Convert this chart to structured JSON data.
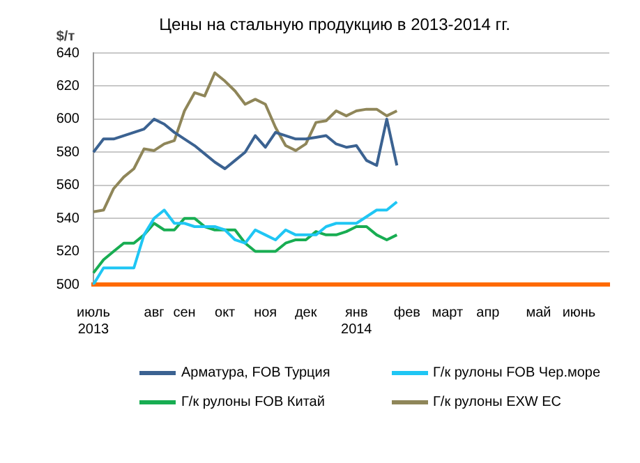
{
  "chart_data": {
    "type": "line",
    "title": "Цены на стальную продукцию в 2013-2014 гг.",
    "ylabel": "$/т",
    "categories": [
      "июль\n2013",
      null,
      null,
      null,
      null,
      null,
      "авг",
      null,
      null,
      "сен",
      null,
      null,
      null,
      "окт",
      null,
      null,
      null,
      "ноя",
      null,
      null,
      null,
      "дек",
      null,
      null,
      null,
      null,
      "янв\n2014",
      null,
      null,
      null,
      null,
      "фев",
      null,
      null,
      null,
      "март",
      null,
      null,
      null,
      "апр",
      null,
      null,
      null,
      null,
      "май",
      null,
      null,
      null,
      "июнь",
      null,
      null,
      null
    ],
    "series": [
      {
        "name": "Арматура, FOB Турция",
        "color": "#3b6291",
        "values": [
          580,
          588,
          588,
          590,
          592,
          594,
          600,
          597,
          592,
          588,
          584,
          579,
          574,
          570,
          575,
          580,
          590,
          583,
          592,
          590,
          588,
          588,
          589,
          590,
          585,
          583,
          584,
          575,
          572,
          600,
          572,
          null,
          null,
          null,
          null,
          null,
          null,
          null,
          null,
          null,
          null,
          null,
          null,
          null,
          null,
          null,
          null,
          null,
          null,
          null,
          null,
          null
        ]
      },
      {
        "name": "Г/к рулоны FOB Чер.море",
        "color": "#1fc6f4",
        "values": [
          500,
          510,
          510,
          510,
          510,
          530,
          540,
          545,
          537,
          537,
          535,
          535,
          535,
          533,
          527,
          525,
          533,
          530,
          527,
          533,
          530,
          530,
          530,
          535,
          537,
          537,
          537,
          541,
          545,
          545,
          550,
          null,
          null,
          null,
          null,
          null,
          null,
          null,
          null,
          null,
          null,
          null,
          null,
          null,
          null,
          null,
          null,
          null,
          null,
          null,
          null,
          null
        ]
      },
      {
        "name": "Г/к рулоны FOB Китай",
        "color": "#18ad52",
        "values": [
          507,
          515,
          520,
          525,
          525,
          530,
          537,
          533,
          533,
          540,
          540,
          535,
          533,
          533,
          533,
          525,
          520,
          520,
          520,
          525,
          527,
          527,
          532,
          530,
          530,
          532,
          535,
          535,
          530,
          527,
          530,
          null,
          null,
          null,
          null,
          null,
          null,
          null,
          null,
          null,
          null,
          null,
          null,
          null,
          null,
          null,
          null,
          null,
          null,
          null,
          null,
          null
        ]
      },
      {
        "name": "Г/к рулоны EXW ЕС",
        "color": "#8f8659",
        "values": [
          544,
          545,
          558,
          565,
          570,
          582,
          581,
          585,
          587,
          605,
          616,
          614,
          628,
          623,
          617,
          609,
          612,
          609,
          595,
          584,
          581,
          585,
          598,
          599,
          605,
          602,
          605,
          606,
          606,
          602,
          605,
          null,
          null,
          null,
          null,
          null,
          null,
          null,
          null,
          null,
          null,
          null,
          null,
          null,
          null,
          null,
          null,
          null,
          null,
          null,
          null,
          null
        ]
      }
    ],
    "ylim": [
      500,
      640
    ],
    "yticks": [
      500,
      520,
      540,
      560,
      580,
      600,
      620,
      640
    ],
    "grid": "y",
    "legend": "bottom",
    "marker": "none",
    "line_style": "solid"
  }
}
